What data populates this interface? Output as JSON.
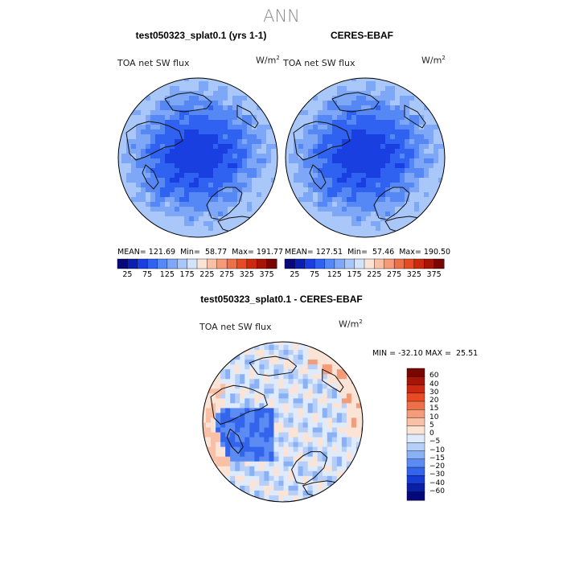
{
  "figure": {
    "title": "ANN"
  },
  "panels": [
    {
      "title": "test050323_splat0.1 (yrs 1-1)",
      "variable": "TOA net SW flux",
      "units": "W/m",
      "units_exp": "2",
      "stats": {
        "mean_label": "MEAN=",
        "mean": "121.69",
        "min_label": "Min=",
        "min": "58.77",
        "max_label": "Max=",
        "max": "191.77"
      }
    },
    {
      "title": "CERES-EBAF",
      "variable": "TOA net SW flux",
      "units": "W/m",
      "units_exp": "2",
      "stats": {
        "mean_label": "MEAN=",
        "mean": "127.51",
        "min_label": "Min=",
        "min": "57.46",
        "max_label": "Max=",
        "max": "190.50"
      }
    },
    {
      "title": "test050323_splat0.1 - CERES-EBAF",
      "variable": "TOA net SW flux",
      "units": "W/m",
      "units_exp": "2",
      "stats": {
        "min_label": "MIN =",
        "min": "-32.10",
        "max_label": "MAX =",
        "max": "25.51"
      }
    }
  ],
  "colorbar_abs": {
    "labels": [
      "25",
      "75",
      "125",
      "175",
      "225",
      "275",
      "325",
      "375"
    ],
    "colors": [
      "#08087a",
      "#0b1fb0",
      "#1a3fe0",
      "#2f62f0",
      "#5587f5",
      "#7ea8f7",
      "#a9c7f9",
      "#d2e2fb",
      "#fbe3d6",
      "#f8c0a6",
      "#f49c7a",
      "#ee7048",
      "#e84a22",
      "#cc2a10",
      "#a51508",
      "#7a0604"
    ]
  },
  "colorbar_diff": {
    "labels": [
      "60",
      "40",
      "30",
      "20",
      "15",
      "10",
      "5",
      "0",
      "−5",
      "−10",
      "−15",
      "−20",
      "−30",
      "−40",
      "−60"
    ],
    "colors": [
      "#7a0604",
      "#a51508",
      "#cc2a10",
      "#e84a22",
      "#ee7048",
      "#f49c7a",
      "#f8c0a6",
      "#fbe3d6",
      "#dfeafb",
      "#b6cff9",
      "#8ab1f6",
      "#5c8cf3",
      "#3364ec",
      "#163cd4",
      "#0a1fa5",
      "#050878"
    ]
  }
}
